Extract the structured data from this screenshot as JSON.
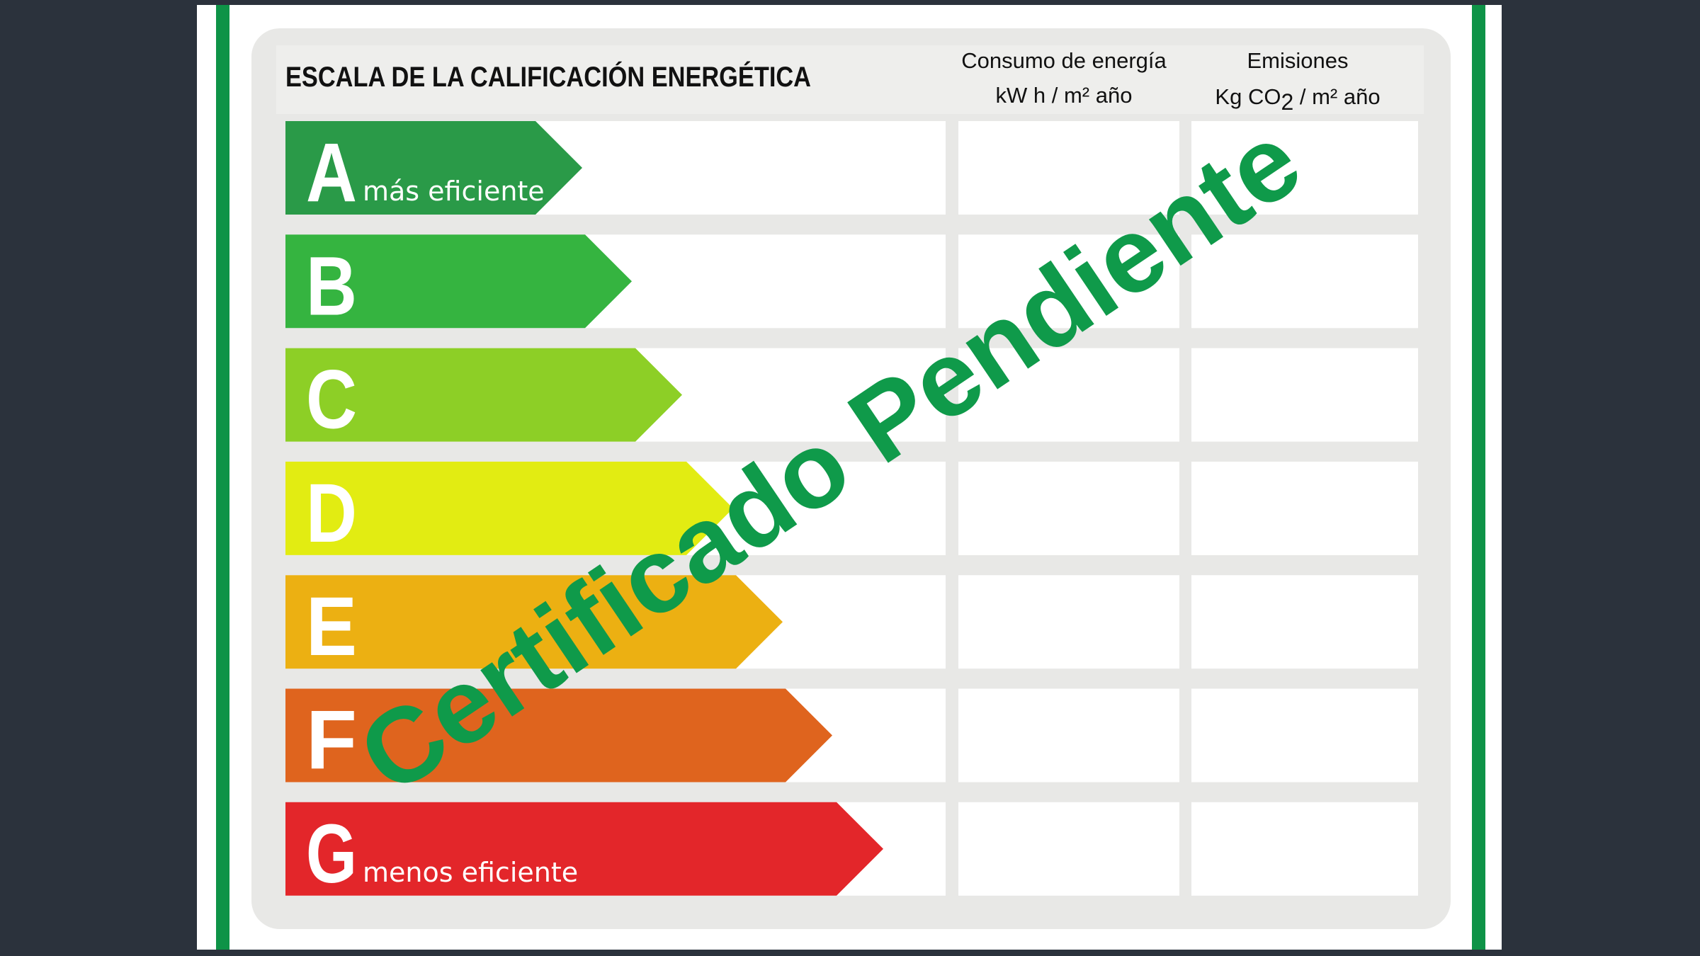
{
  "label": {
    "title": "ESCALA DE LA CALIFICACIÓN ENERGÉTICA",
    "columns": [
      {
        "title": "Consumo de energía",
        "unit": "kW h / m² año"
      },
      {
        "title": "Emisiones",
        "unit_prefix": "Kg CO",
        "unit_sub": "2",
        "unit_suffix": " / m²  año"
      }
    ],
    "ratings": [
      {
        "letter": "A",
        "caption": "más eficiente",
        "color": "#2a9a48"
      },
      {
        "letter": "B",
        "caption": "",
        "color": "#35b440"
      },
      {
        "letter": "C",
        "caption": "",
        "color": "#8dcf26"
      },
      {
        "letter": "D",
        "caption": "",
        "color": "#e2ec12"
      },
      {
        "letter": "E",
        "caption": "",
        "color": "#ecb012"
      },
      {
        "letter": "F",
        "caption": "",
        "color": "#df641e"
      },
      {
        "letter": "G",
        "caption": "menos eficiente",
        "color": "#e3262a"
      }
    ]
  },
  "watermark": {
    "text": "Certificado Pendiente",
    "color": "#0f9a4a"
  },
  "colors": {
    "frame_green": "#0e9347",
    "background": "#2b323c",
    "panel": "#e8e8e6"
  }
}
